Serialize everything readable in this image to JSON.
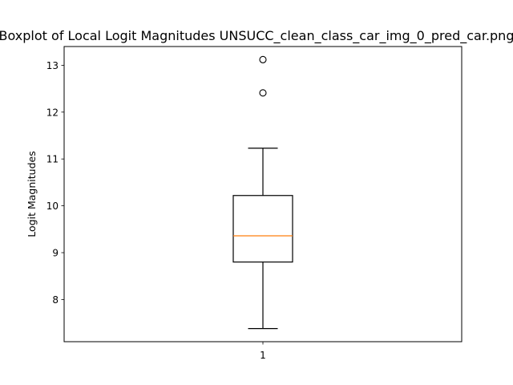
{
  "chart_data": {
    "type": "box",
    "title": "Boxplot of Local Logit Magnitudes UNSUCC_clean_class_car_img_0_pred_car.png",
    "xlabel": "",
    "ylabel": "Logit Magnitudes",
    "categories": [
      "1"
    ],
    "ylim": [
      7.1,
      13.4
    ],
    "yticks": [
      8,
      9,
      10,
      11,
      12,
      13
    ],
    "box": {
      "whisker_low": 7.38,
      "q1": 8.8,
      "median": 9.36,
      "q3": 10.22,
      "whisker_high": 11.23,
      "outliers": [
        12.41,
        13.12
      ]
    },
    "colors": {
      "median": "#ff7f0e",
      "box": "#000000"
    },
    "grid": false
  }
}
